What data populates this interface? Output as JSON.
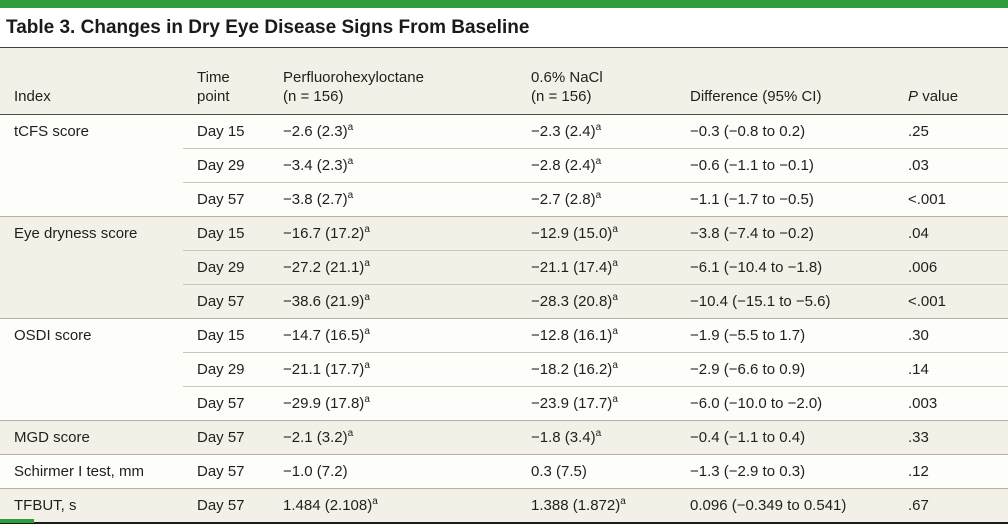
{
  "title": "Table 3. Changes in Dry Eye Disease Signs From Baseline",
  "colors": {
    "accent_green": "#2e9d3c",
    "header_bg": "#f3f1e7",
    "row_shade_cream": "#f3f1e7",
    "row_shade_white": "#fdfdfa"
  },
  "table": {
    "headers": {
      "index": "Index",
      "time_line1": "Time",
      "time_line2": "point",
      "drug_line1": "Perfluorohexyloctane",
      "drug_line2": "(n = 156)",
      "nacl_line1": "0.6% NaCl",
      "nacl_line2": "(n = 156)",
      "difference": "Difference (95% CI)",
      "p_italic": "P",
      "p_rest": "value"
    },
    "rows": [
      {
        "index": "tCFS score",
        "time": "Day 15",
        "drug": "−2.6 (2.3)^a",
        "nacl": "−2.3 (2.4)^a",
        "diff": "−0.3 (−0.8 to 0.2)",
        "p": ".25",
        "group_start": true,
        "shade": "white"
      },
      {
        "index": "",
        "time": "Day 29",
        "drug": "−3.4 (2.3)^a",
        "nacl": "−2.8 (2.4)^a",
        "diff": "−0.6 (−1.1 to −0.1)",
        "p": ".03",
        "group_start": false,
        "shade": "white"
      },
      {
        "index": "",
        "time": "Day 57",
        "drug": "−3.8 (2.7)^a",
        "nacl": "−2.7 (2.8)^a",
        "diff": "−1.1 (−1.7 to −0.5)",
        "p": "<.001",
        "group_start": false,
        "shade": "white"
      },
      {
        "index": "Eye dryness score",
        "time": "Day 15",
        "drug": "−16.7 (17.2)^a",
        "nacl": "−12.9 (15.0)^a",
        "diff": "−3.8 (−7.4 to −0.2)",
        "p": ".04",
        "group_start": true,
        "shade": "cream"
      },
      {
        "index": "",
        "time": "Day 29",
        "drug": "−27.2 (21.1)^a",
        "nacl": "−21.1 (17.4)^a",
        "diff": "−6.1 (−10.4 to −1.8)",
        "p": ".006",
        "group_start": false,
        "shade": "cream"
      },
      {
        "index": "",
        "time": "Day 57",
        "drug": "−38.6 (21.9)^a",
        "nacl": "−28.3 (20.8)^a",
        "diff": "−10.4 (−15.1 to −5.6)",
        "p": "<.001",
        "group_start": false,
        "shade": "cream"
      },
      {
        "index": "OSDI score",
        "time": "Day 15",
        "drug": "−14.7 (16.5)^a",
        "nacl": "−12.8 (16.1)^a",
        "diff": "−1.9 (−5.5 to 1.7)",
        "p": ".30",
        "group_start": true,
        "shade": "white"
      },
      {
        "index": "",
        "time": "Day 29",
        "drug": "−21.1 (17.7)^a",
        "nacl": "−18.2 (16.2)^a",
        "diff": "−2.9 (−6.6 to 0.9)",
        "p": ".14",
        "group_start": false,
        "shade": "white"
      },
      {
        "index": "",
        "time": "Day 57",
        "drug": "−29.9 (17.8)^a",
        "nacl": "−23.9 (17.7)^a",
        "diff": "−6.0 (−10.0 to −2.0)",
        "p": ".003",
        "group_start": false,
        "shade": "white"
      },
      {
        "index": "MGD score",
        "time": "Day 57",
        "drug": "−2.1 (3.2)^a",
        "nacl": "−1.8 (3.4)^a",
        "diff": "−0.4 (−1.1 to 0.4)",
        "p": ".33",
        "group_start": true,
        "shade": "cream"
      },
      {
        "index": "Schirmer I test, mm",
        "time": "Day 57",
        "drug": "−1.0 (7.2)",
        "nacl": "0.3 (7.5)",
        "diff": "−1.3 (−2.9 to 0.3)",
        "p": ".12",
        "group_start": true,
        "shade": "white"
      },
      {
        "index": "TFBUT, s",
        "time": "Day 57",
        "drug": "1.484 (2.108)^a",
        "nacl": "1.388 (1.872)^a",
        "diff": "0.096 (−0.349 to 0.541)",
        "p": ".67",
        "group_start": true,
        "shade": "cream"
      }
    ]
  }
}
